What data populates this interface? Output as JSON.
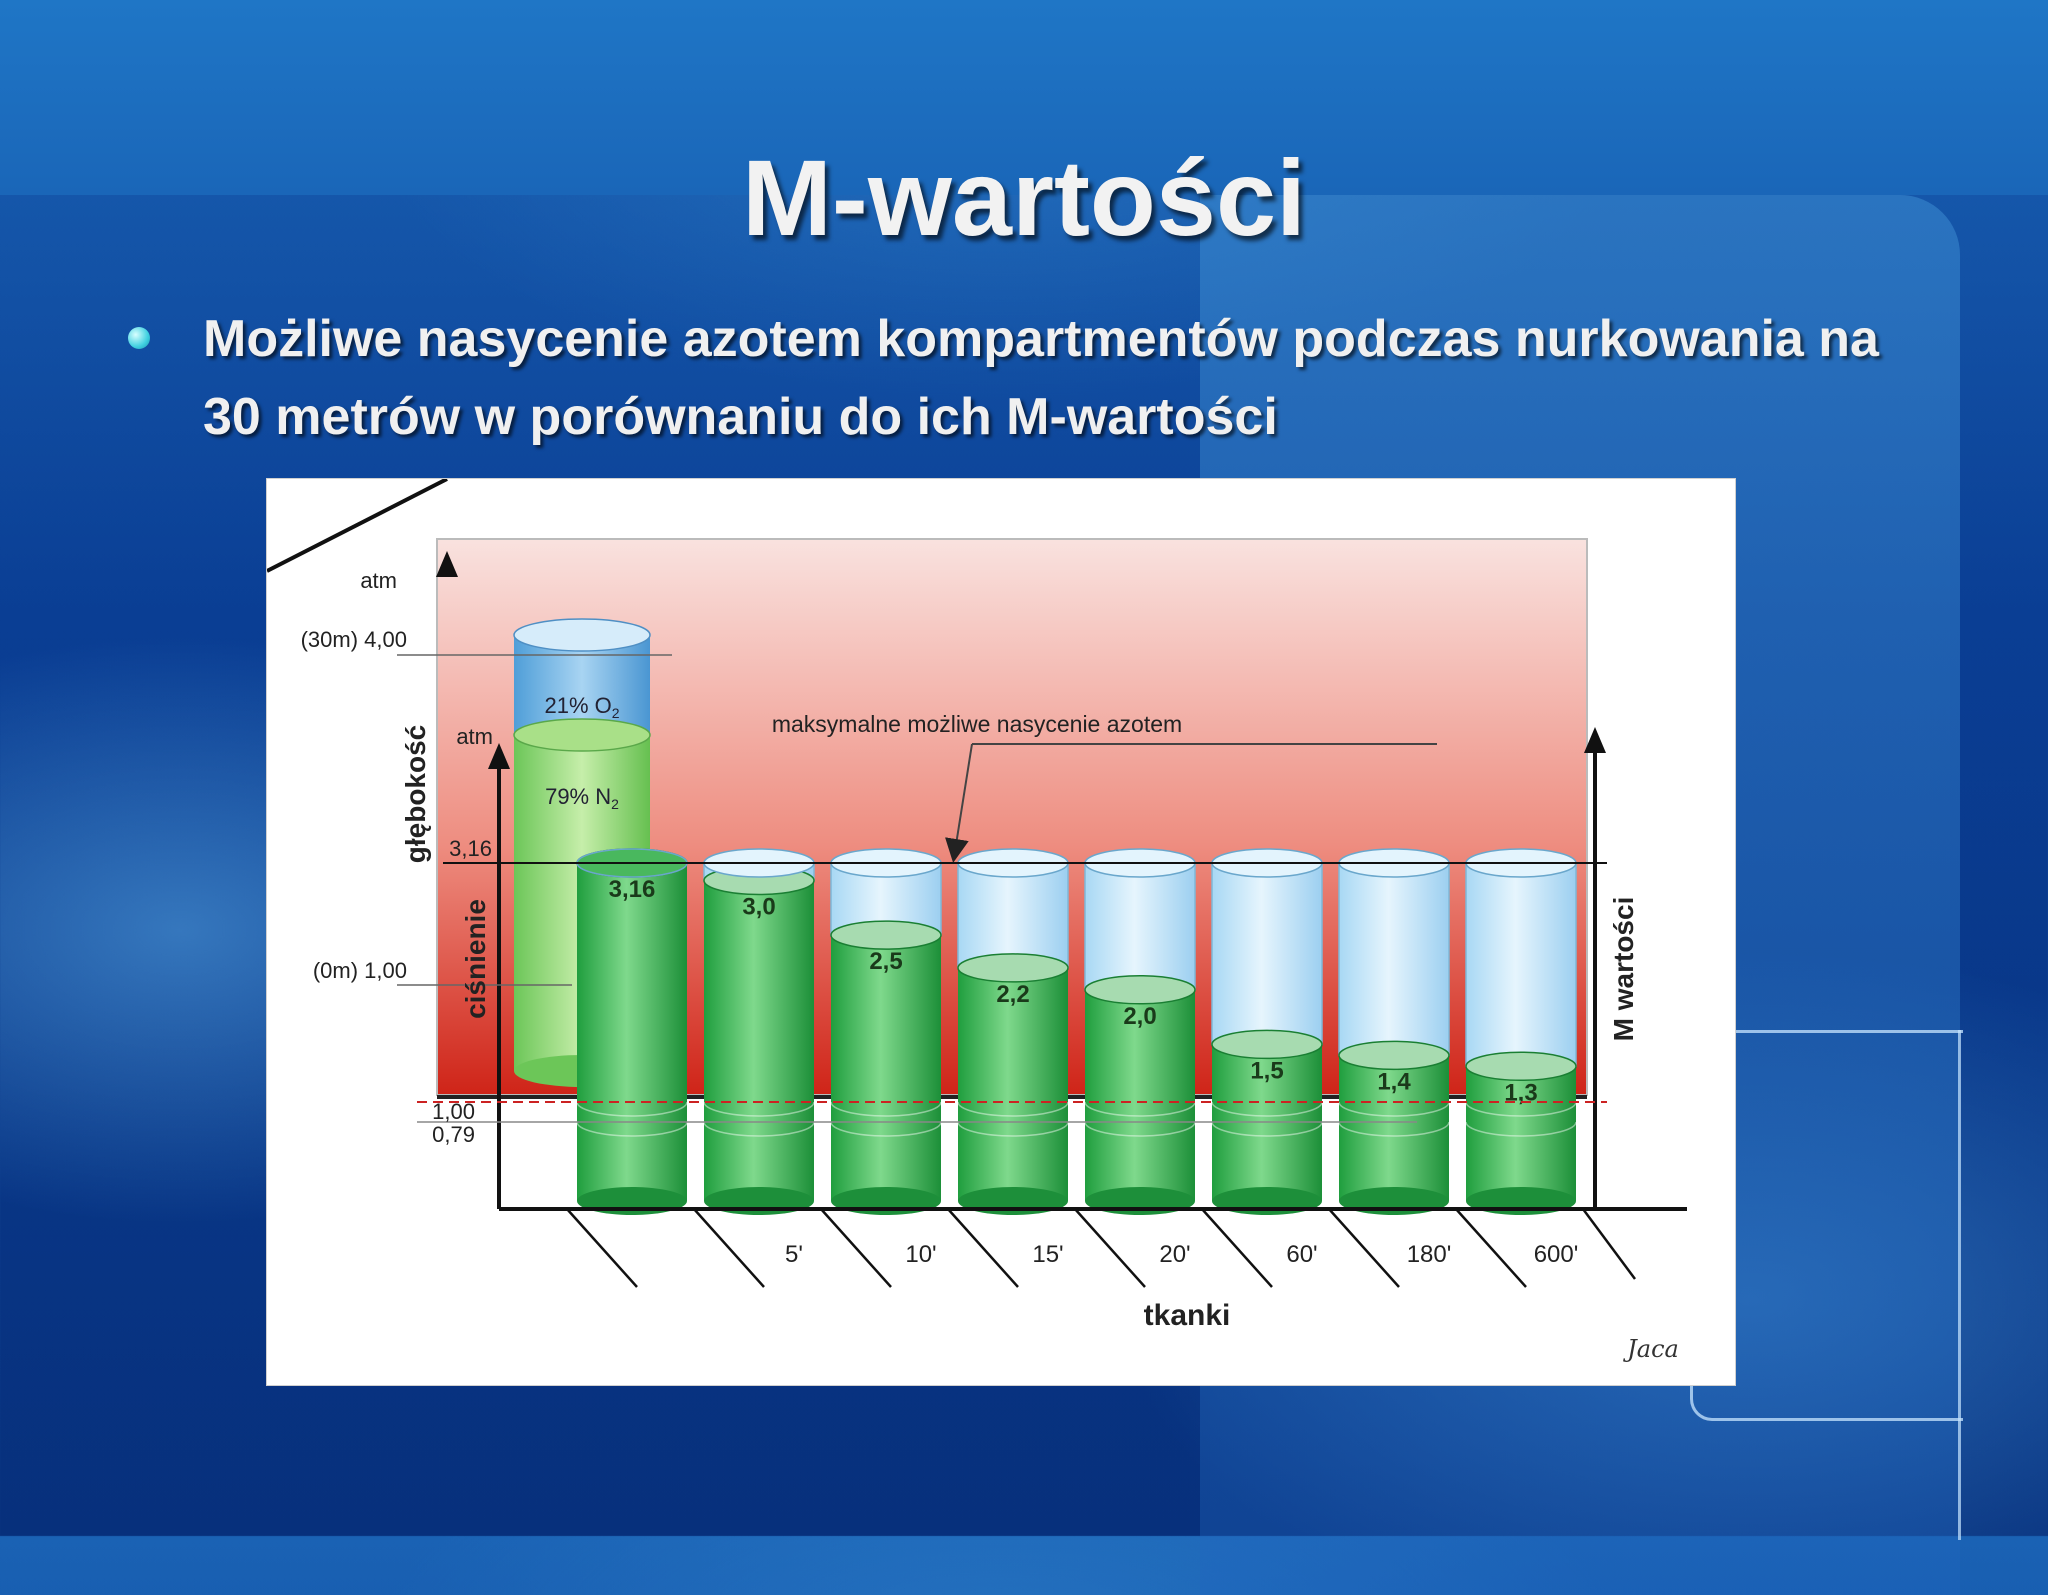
{
  "slide": {
    "title": "M-wartości",
    "bullet": "Możliwe nasycenie azotem kompartmentów podczas nurkowania na 30 metrów w porównaniu do ich M-wartości"
  },
  "colors": {
    "green": "#2aa84a",
    "water": "#bfe3f8",
    "red_band": "#d63426",
    "o2": "#6fb0e0",
    "n2": "#8ed86a"
  },
  "chart_data": {
    "type": "bar",
    "annotation": "maksymalne możliwe nasycenie azotem",
    "xlabel": "tkanki",
    "ylabel_left_outer": "głębokość",
    "ylabel_left_inner": "ciśnienie",
    "ylabel_right": "M wartości",
    "unit_outer": "atm",
    "unit_inner": "atm",
    "outer_ticks": [
      "(30m) 4,00",
      "(0m) 1,00"
    ],
    "inner_ticks": [
      "3,16",
      "1,00",
      "0,79"
    ],
    "gas_column": {
      "o2_label": "21% O",
      "o2_sub": "2",
      "n2_label": "79% N",
      "n2_sub": "2"
    },
    "categories": [
      "",
      "5'",
      "10'",
      "15'",
      "20'",
      "60'",
      "180'",
      "600'"
    ],
    "values": [
      3.16,
      3.0,
      2.5,
      2.2,
      2.0,
      1.5,
      1.4,
      1.3
    ],
    "value_labels": [
      "3,16",
      "3,0",
      "2,5",
      "2,2",
      "2,0",
      "1,5",
      "1,4",
      "1,3"
    ],
    "max_saturation": 3.16,
    "ylim": [
      0.79,
      3.16
    ],
    "signature": "Jaca"
  }
}
